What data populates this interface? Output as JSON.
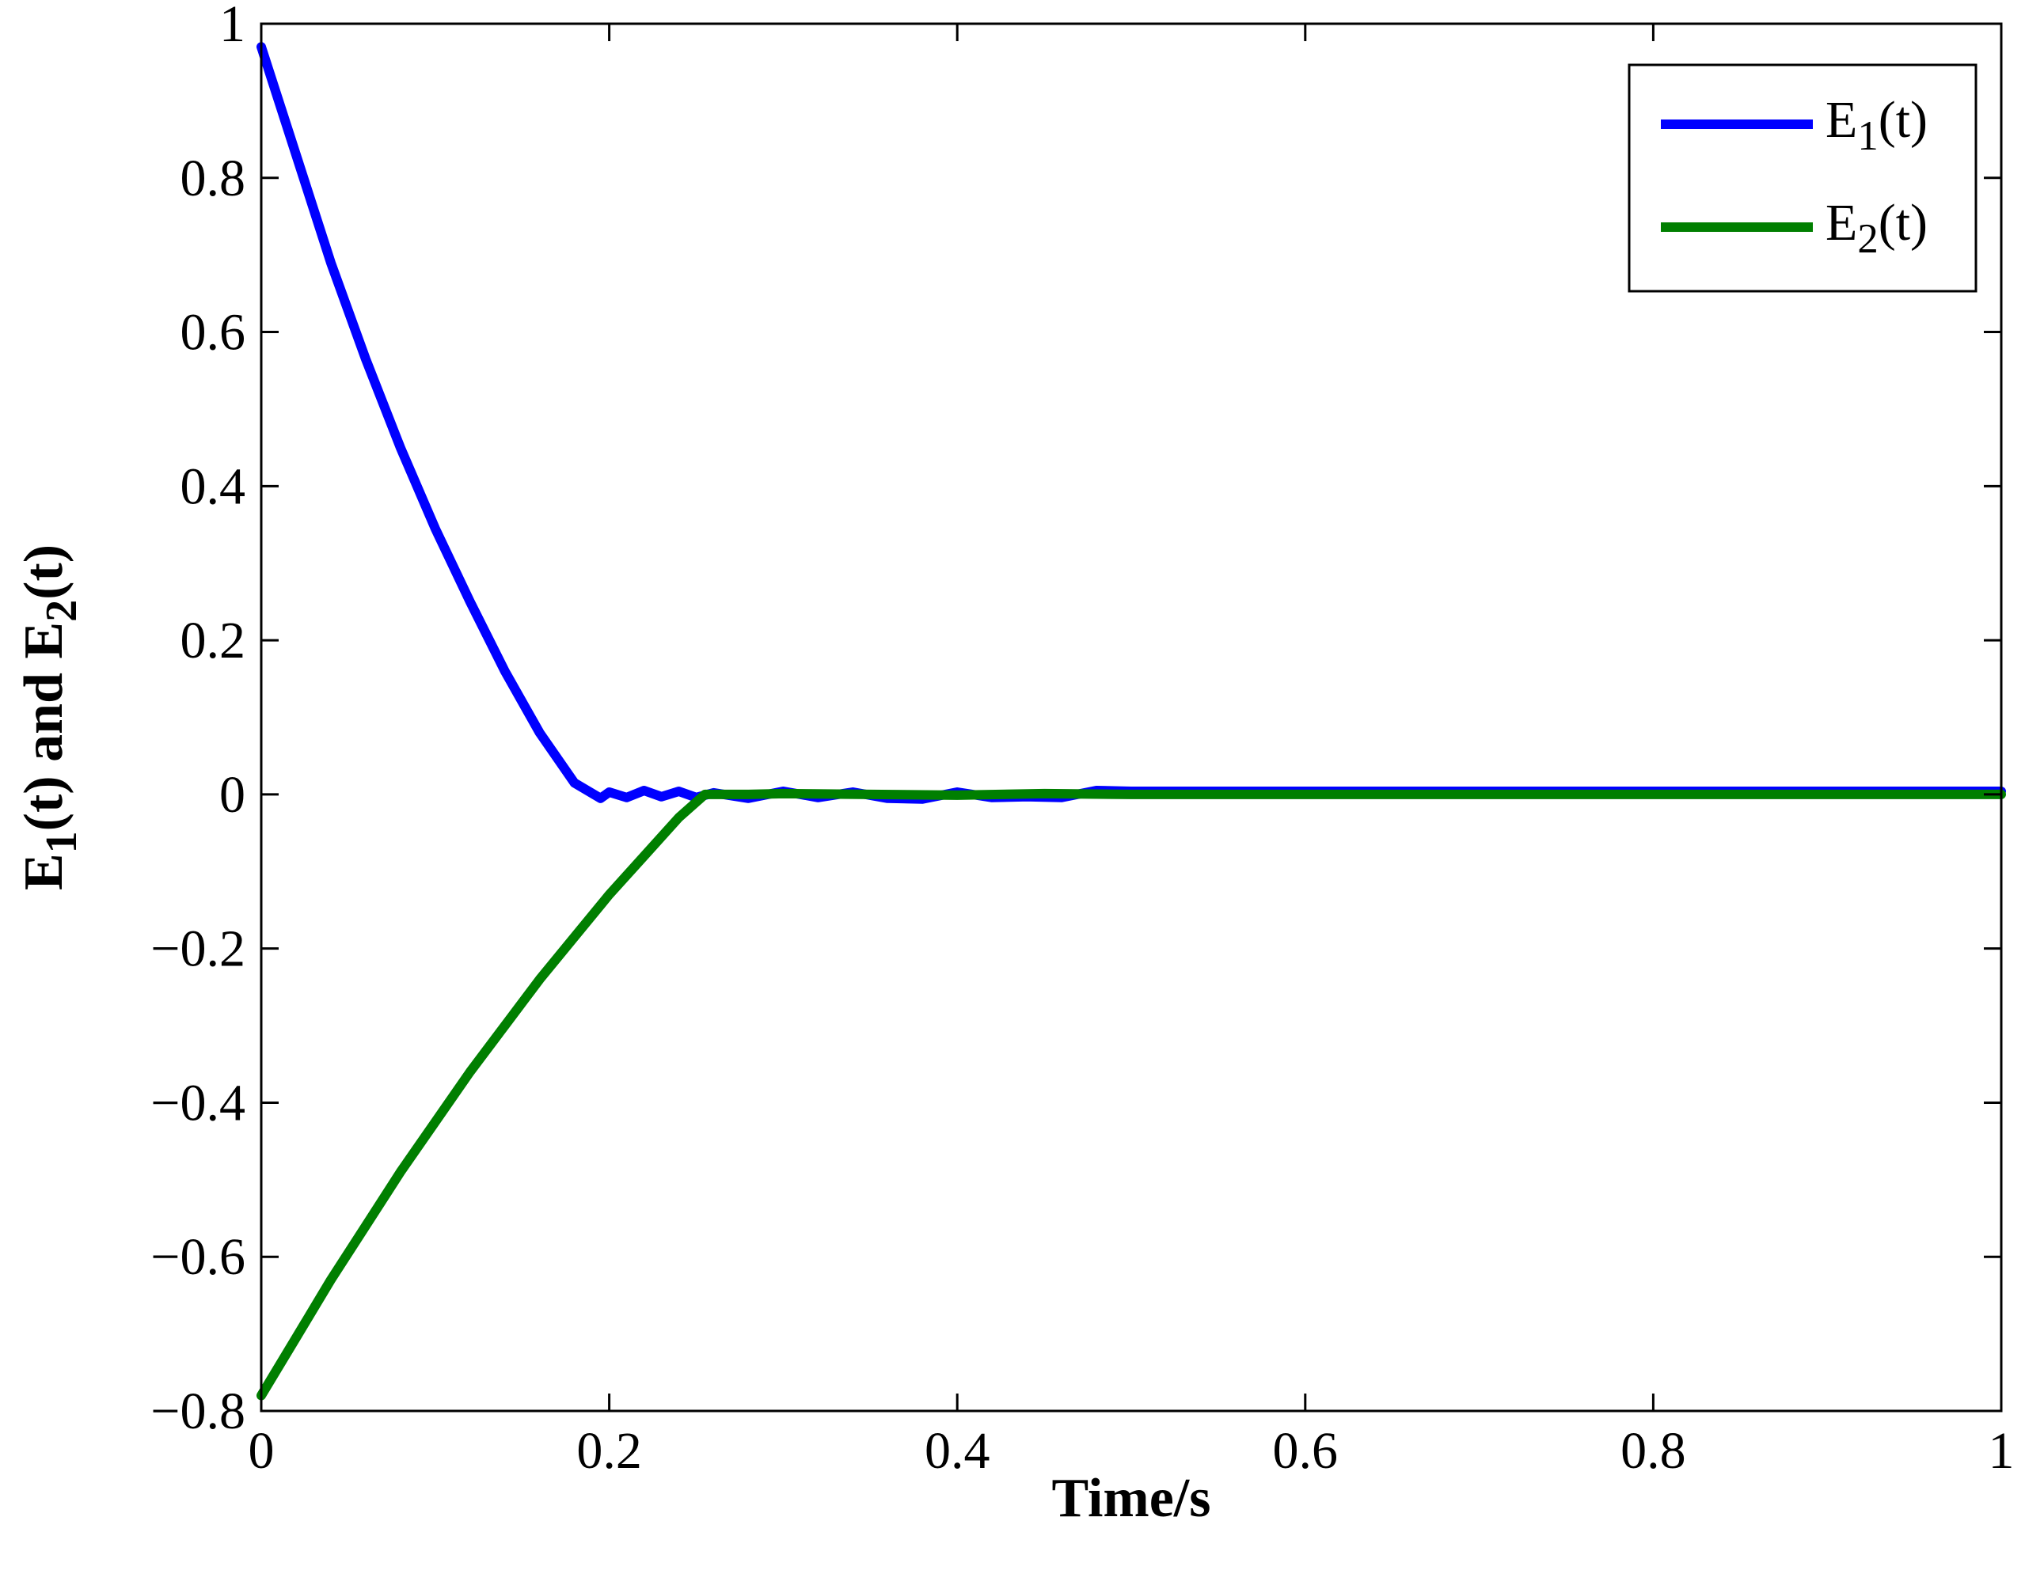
{
  "chart_data": {
    "type": "line",
    "title": "",
    "xlabel": "Time/s",
    "ylabel": {
      "parts": [
        {
          "t": "E"
        },
        {
          "t": "1",
          "sub": true
        },
        {
          "t": "(t) and E"
        },
        {
          "t": "2",
          "sub": true
        },
        {
          "t": "(t)"
        }
      ]
    },
    "xlim": [
      0,
      1
    ],
    "ylim": [
      -0.8,
      1
    ],
    "x_ticks": [
      0,
      0.2,
      0.4,
      0.6,
      0.8,
      1
    ],
    "x_tick_labels": [
      "0",
      "0.2",
      "0.4",
      "0.6",
      "0.8",
      "1"
    ],
    "y_ticks": [
      -0.8,
      -0.6,
      -0.4,
      -0.2,
      0,
      0.2,
      0.4,
      0.6,
      0.8,
      1
    ],
    "y_tick_labels": [
      "−0.8",
      "−0.6",
      "−0.4",
      "−0.2",
      "0",
      "0.2",
      "0.4",
      "0.6",
      "0.8",
      "1"
    ],
    "grid": false,
    "legend_position": "top-right",
    "series": [
      {
        "name": {
          "parts": [
            {
              "t": "E"
            },
            {
              "t": "1",
              "sub": true
            },
            {
              "t": "(t)"
            }
          ]
        },
        "color": "#0000ff",
        "x": [
          0,
          0.02,
          0.04,
          0.06,
          0.08,
          0.1,
          0.12,
          0.14,
          0.16,
          0.18,
          0.195,
          0.2,
          0.21,
          0.22,
          0.23,
          0.24,
          0.25,
          0.26,
          0.28,
          0.3,
          0.32,
          0.34,
          0.36,
          0.38,
          0.4,
          0.42,
          0.44,
          0.46,
          0.48,
          0.5,
          0.6,
          0.7,
          0.8,
          0.9,
          1.0
        ],
        "y": [
          0.97,
          0.83,
          0.69,
          0.565,
          0.45,
          0.345,
          0.25,
          0.16,
          0.08,
          0.015,
          -0.005,
          0.003,
          -0.004,
          0.005,
          -0.003,
          0.004,
          -0.004,
          0.002,
          -0.005,
          0.004,
          -0.004,
          0.003,
          -0.005,
          -0.006,
          0.003,
          -0.004,
          -0.003,
          -0.004,
          0.005,
          0.004,
          0.004,
          0.004,
          0.004,
          0.004,
          0.004
        ]
      },
      {
        "name": {
          "parts": [
            {
              "t": "E"
            },
            {
              "t": "2",
              "sub": true
            },
            {
              "t": "(t)"
            }
          ]
        },
        "color": "#007f00",
        "x": [
          0,
          0.02,
          0.04,
          0.06,
          0.08,
          0.1,
          0.12,
          0.14,
          0.16,
          0.18,
          0.2,
          0.22,
          0.24,
          0.255,
          0.28,
          0.3,
          0.35,
          0.4,
          0.45,
          0.5,
          0.6,
          0.7,
          0.8,
          0.9,
          1.0
        ],
        "y": [
          -0.78,
          -0.705,
          -0.63,
          -0.56,
          -0.49,
          -0.425,
          -0.36,
          -0.3,
          -0.24,
          -0.185,
          -0.13,
          -0.08,
          -0.03,
          0.0,
          0.0,
          0.001,
          0.0,
          -0.001,
          0.001,
          0.0,
          0.0,
          0.0,
          0.0,
          0.0,
          0.0
        ]
      }
    ]
  }
}
